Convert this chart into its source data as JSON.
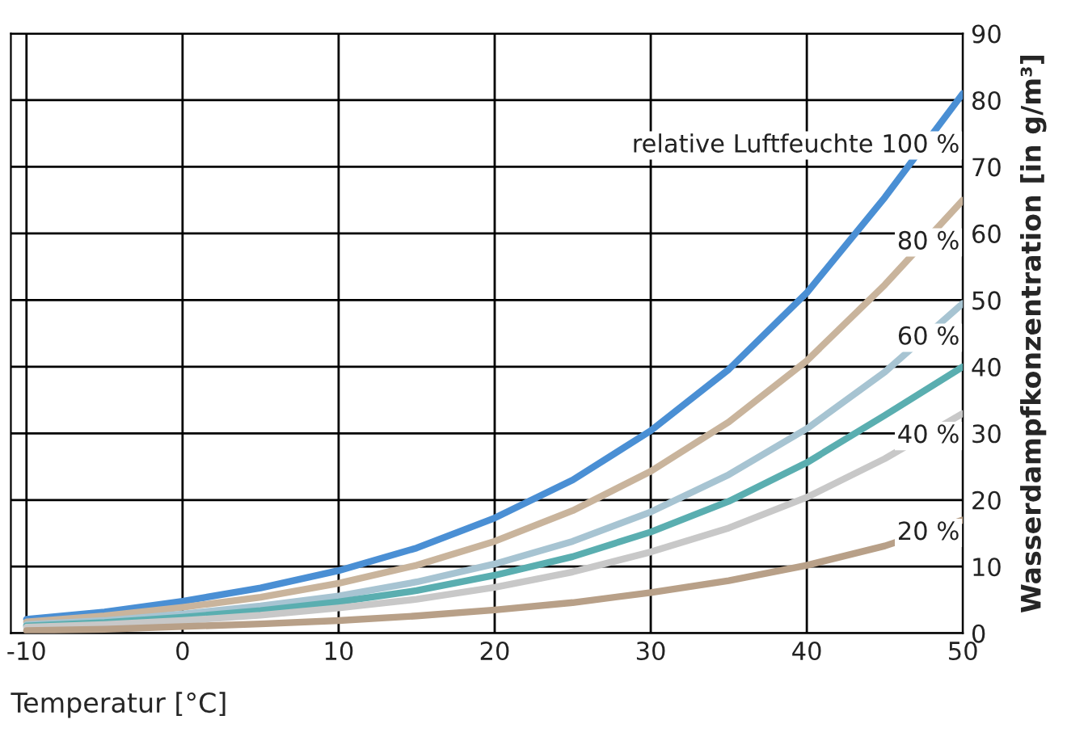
{
  "chart_data": {
    "type": "line",
    "xlabel": "Temperatur [°C]",
    "ylabel": "Wasserdampfkonzentration [in g/m³]",
    "x": [
      -10,
      -5,
      0,
      5,
      10,
      15,
      20,
      25,
      30,
      35,
      40,
      45,
      50
    ],
    "series": [
      {
        "name": "relative Luftfeuchte 100 %",
        "color": "#4a8fd4",
        "values": [
          2.1,
          3.2,
          4.8,
          6.8,
          9.4,
          12.8,
          17.3,
          23.0,
          30.4,
          39.6,
          51.1,
          65.4,
          81.0
        ]
      },
      {
        "name": "80 %",
        "color": "#c9b49c",
        "values": [
          1.7,
          2.6,
          3.9,
          5.4,
          7.5,
          10.2,
          13.8,
          18.4,
          24.3,
          31.7,
          40.9,
          52.3,
          65.0
        ]
      },
      {
        "name": "60 %",
        "color": "#a7c4d2",
        "values": [
          1.3,
          1.9,
          2.9,
          4.1,
          5.6,
          7.7,
          10.4,
          13.8,
          18.2,
          23.8,
          30.7,
          39.2,
          49.5
        ]
      },
      {
        "color": "#5aaeb0",
        "values": [
          1.1,
          1.6,
          2.4,
          3.4,
          4.7,
          6.4,
          8.7,
          11.5,
          15.2,
          19.8,
          25.6,
          32.7,
          40.0
        ]
      },
      {
        "name": "40 %",
        "color": "#c8c8c8",
        "values": [
          0.9,
          1.3,
          1.9,
          2.7,
          3.8,
          5.1,
          6.9,
          9.2,
          12.2,
          15.8,
          20.4,
          26.2,
          33.0
        ]
      },
      {
        "name": "20 %",
        "color": "#b8a088",
        "values": [
          0.4,
          0.6,
          1.0,
          1.4,
          1.9,
          2.6,
          3.5,
          4.6,
          6.1,
          7.9,
          10.2,
          13.1,
          17.0
        ]
      }
    ],
    "xlim": [
      -11,
      50
    ],
    "xticks": [
      -10,
      0,
      10,
      20,
      30,
      40,
      50
    ],
    "ylim": [
      0,
      90
    ],
    "yticks": [
      0,
      10,
      20,
      30,
      40,
      50,
      60,
      70,
      80,
      90
    ],
    "grid": true,
    "line_style": "solid",
    "marker": "none"
  }
}
